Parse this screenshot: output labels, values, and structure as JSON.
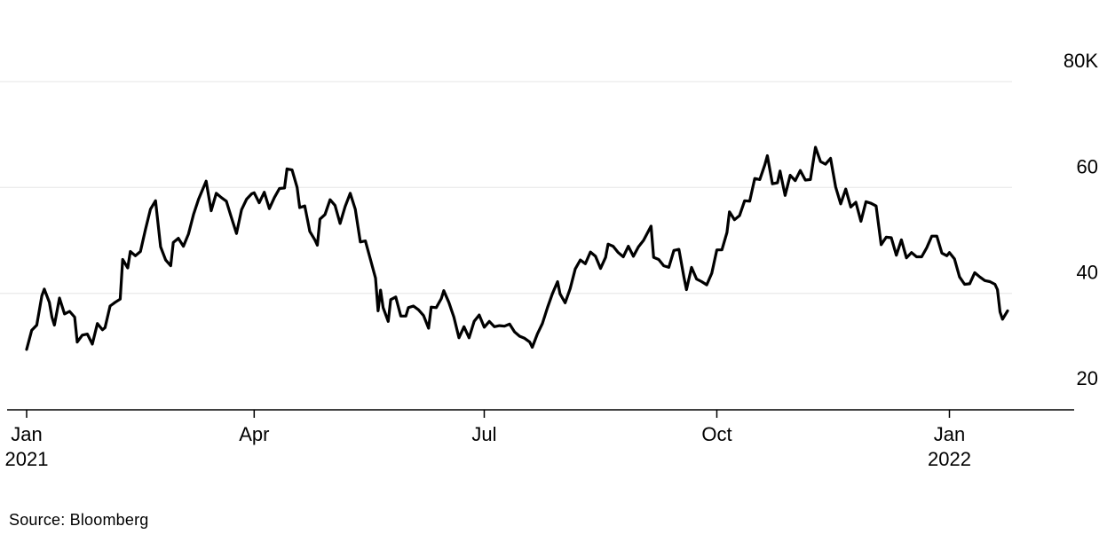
{
  "page": {
    "source_note": "Source: Bloomberg"
  },
  "style": {
    "background": "#ffffff",
    "line_color": "#000000",
    "grid_color": "#e6e6e6",
    "axis_color": "#000000",
    "text_color": "#000000"
  },
  "chart_data": {
    "type": "line",
    "title": "",
    "xlabel": "",
    "ylabel": "",
    "legend_position": "none",
    "grid": "horizontal-only",
    "y_axis_side": "right",
    "ylim": [
      20,
      80
    ],
    "y_tick_format": "thousands, top tick suffixed with K",
    "y_ticks": [
      {
        "value": 20,
        "label": "20"
      },
      {
        "value": 40,
        "label": "40"
      },
      {
        "value": 60,
        "label": "60"
      },
      {
        "value": 80,
        "label": "80K"
      }
    ],
    "y_gridlines": [
      40,
      60,
      80
    ],
    "x_unit": "days since first point (2021-01-01)",
    "x_range_days": [
      0,
      388
    ],
    "x_ticks": [
      {
        "day": 0,
        "label": "Jan",
        "sub": "2021"
      },
      {
        "day": 90,
        "label": "Apr",
        "sub": ""
      },
      {
        "day": 181,
        "label": "Jul",
        "sub": ""
      },
      {
        "day": 273,
        "label": "Oct",
        "sub": ""
      },
      {
        "day": 365,
        "label": "Jan",
        "sub": "2022"
      }
    ],
    "series": [
      {
        "name": "series-1",
        "points": [
          [
            0,
            29.4
          ],
          [
            2,
            33.0
          ],
          [
            4,
            34.0
          ],
          [
            6,
            39.5
          ],
          [
            7,
            40.8
          ],
          [
            9,
            38.3
          ],
          [
            10,
            35.5
          ],
          [
            11,
            34.0
          ],
          [
            13,
            39.1
          ],
          [
            15,
            36.1
          ],
          [
            17,
            36.6
          ],
          [
            19,
            35.5
          ],
          [
            20,
            30.8
          ],
          [
            22,
            32.1
          ],
          [
            24,
            32.3
          ],
          [
            26,
            30.4
          ],
          [
            28,
            34.3
          ],
          [
            30,
            33.1
          ],
          [
            31,
            33.5
          ],
          [
            33,
            37.6
          ],
          [
            35,
            38.3
          ],
          [
            37,
            38.9
          ],
          [
            38,
            46.4
          ],
          [
            40,
            44.8
          ],
          [
            41,
            47.9
          ],
          [
            43,
            47.1
          ],
          [
            45,
            47.9
          ],
          [
            47,
            52.1
          ],
          [
            49,
            55.9
          ],
          [
            51,
            57.5
          ],
          [
            53,
            48.8
          ],
          [
            55,
            46.3
          ],
          [
            57,
            45.2
          ],
          [
            58,
            49.6
          ],
          [
            60,
            50.4
          ],
          [
            62,
            48.9
          ],
          [
            64,
            51.2
          ],
          [
            66,
            54.9
          ],
          [
            68,
            57.8
          ],
          [
            71,
            61.2
          ],
          [
            73,
            55.6
          ],
          [
            75,
            58.9
          ],
          [
            77,
            58.1
          ],
          [
            79,
            57.4
          ],
          [
            81,
            54.3
          ],
          [
            83,
            51.3
          ],
          [
            85,
            55.8
          ],
          [
            87,
            57.8
          ],
          [
            89,
            58.8
          ],
          [
            90,
            59.0
          ],
          [
            92,
            57.1
          ],
          [
            94,
            59.1
          ],
          [
            96,
            56.0
          ],
          [
            98,
            58.1
          ],
          [
            100,
            59.8
          ],
          [
            102,
            59.9
          ],
          [
            103,
            63.5
          ],
          [
            105,
            63.3
          ],
          [
            107,
            60.0
          ],
          [
            108,
            56.2
          ],
          [
            110,
            56.5
          ],
          [
            112,
            51.7
          ],
          [
            114,
            50.1
          ],
          [
            115,
            49.1
          ],
          [
            116,
            54.0
          ],
          [
            118,
            54.9
          ],
          [
            120,
            57.7
          ],
          [
            122,
            56.6
          ],
          [
            124,
            53.2
          ],
          [
            126,
            56.4
          ],
          [
            128,
            58.9
          ],
          [
            130,
            55.9
          ],
          [
            132,
            49.7
          ],
          [
            134,
            49.9
          ],
          [
            136,
            46.4
          ],
          [
            138,
            42.9
          ],
          [
            139,
            36.7
          ],
          [
            140,
            40.6
          ],
          [
            141,
            37.3
          ],
          [
            143,
            34.7
          ],
          [
            144,
            38.8
          ],
          [
            146,
            39.3
          ],
          [
            148,
            35.7
          ],
          [
            150,
            35.7
          ],
          [
            151,
            37.3
          ],
          [
            153,
            37.6
          ],
          [
            155,
            36.9
          ],
          [
            157,
            35.8
          ],
          [
            159,
            33.4
          ],
          [
            160,
            37.4
          ],
          [
            162,
            37.3
          ],
          [
            164,
            39.0
          ],
          [
            165,
            40.5
          ],
          [
            167,
            38.3
          ],
          [
            169,
            35.5
          ],
          [
            171,
            31.6
          ],
          [
            173,
            33.7
          ],
          [
            175,
            31.6
          ],
          [
            177,
            34.7
          ],
          [
            179,
            35.9
          ],
          [
            181,
            33.6
          ],
          [
            183,
            34.7
          ],
          [
            185,
            33.7
          ],
          [
            187,
            33.9
          ],
          [
            189,
            33.8
          ],
          [
            191,
            34.2
          ],
          [
            193,
            32.7
          ],
          [
            195,
            31.9
          ],
          [
            197,
            31.5
          ],
          [
            199,
            30.8
          ],
          [
            200,
            29.8
          ],
          [
            202,
            32.3
          ],
          [
            204,
            34.3
          ],
          [
            206,
            37.3
          ],
          [
            208,
            40.0
          ],
          [
            210,
            42.2
          ],
          [
            211,
            39.9
          ],
          [
            213,
            38.2
          ],
          [
            215,
            40.9
          ],
          [
            217,
            44.6
          ],
          [
            219,
            46.3
          ],
          [
            221,
            45.6
          ],
          [
            223,
            47.8
          ],
          [
            225,
            47.0
          ],
          [
            227,
            44.7
          ],
          [
            229,
            46.8
          ],
          [
            230,
            49.3
          ],
          [
            232,
            48.9
          ],
          [
            234,
            47.7
          ],
          [
            236,
            46.9
          ],
          [
            238,
            48.9
          ],
          [
            240,
            47.0
          ],
          [
            242,
            48.8
          ],
          [
            244,
            50.0
          ],
          [
            247,
            52.7
          ],
          [
            248,
            46.8
          ],
          [
            250,
            46.4
          ],
          [
            252,
            45.2
          ],
          [
            254,
            44.9
          ],
          [
            256,
            48.1
          ],
          [
            258,
            48.3
          ],
          [
            260,
            43.0
          ],
          [
            261,
            40.7
          ],
          [
            263,
            44.9
          ],
          [
            265,
            42.7
          ],
          [
            267,
            42.2
          ],
          [
            269,
            41.6
          ],
          [
            271,
            43.8
          ],
          [
            273,
            48.2
          ],
          [
            275,
            48.2
          ],
          [
            277,
            51.5
          ],
          [
            278,
            55.4
          ],
          [
            280,
            53.9
          ],
          [
            282,
            54.7
          ],
          [
            284,
            57.5
          ],
          [
            286,
            57.4
          ],
          [
            288,
            61.7
          ],
          [
            290,
            61.5
          ],
          [
            292,
            64.3
          ],
          [
            293,
            66.0
          ],
          [
            295,
            60.7
          ],
          [
            297,
            60.9
          ],
          [
            298,
            63.1
          ],
          [
            300,
            58.5
          ],
          [
            302,
            62.3
          ],
          [
            304,
            61.3
          ],
          [
            306,
            63.2
          ],
          [
            308,
            61.4
          ],
          [
            310,
            61.5
          ],
          [
            312,
            67.6
          ],
          [
            314,
            64.9
          ],
          [
            316,
            64.4
          ],
          [
            318,
            65.5
          ],
          [
            320,
            60.1
          ],
          [
            322,
            56.9
          ],
          [
            324,
            59.7
          ],
          [
            326,
            56.3
          ],
          [
            328,
            57.2
          ],
          [
            330,
            53.6
          ],
          [
            332,
            57.3
          ],
          [
            334,
            57.0
          ],
          [
            336,
            56.5
          ],
          [
            338,
            49.2
          ],
          [
            340,
            50.6
          ],
          [
            342,
            50.5
          ],
          [
            344,
            47.2
          ],
          [
            346,
            50.1
          ],
          [
            348,
            46.7
          ],
          [
            350,
            47.7
          ],
          [
            352,
            46.9
          ],
          [
            354,
            46.9
          ],
          [
            356,
            48.6
          ],
          [
            358,
            50.8
          ],
          [
            360,
            50.8
          ],
          [
            362,
            47.6
          ],
          [
            364,
            47.1
          ],
          [
            365,
            47.7
          ],
          [
            367,
            46.5
          ],
          [
            369,
            43.1
          ],
          [
            371,
            41.7
          ],
          [
            373,
            41.8
          ],
          [
            375,
            43.9
          ],
          [
            377,
            43.1
          ],
          [
            379,
            42.4
          ],
          [
            381,
            42.2
          ],
          [
            383,
            41.7
          ],
          [
            384,
            40.7
          ],
          [
            385,
            36.5
          ],
          [
            386,
            35.1
          ],
          [
            388,
            36.7
          ]
        ]
      }
    ]
  }
}
